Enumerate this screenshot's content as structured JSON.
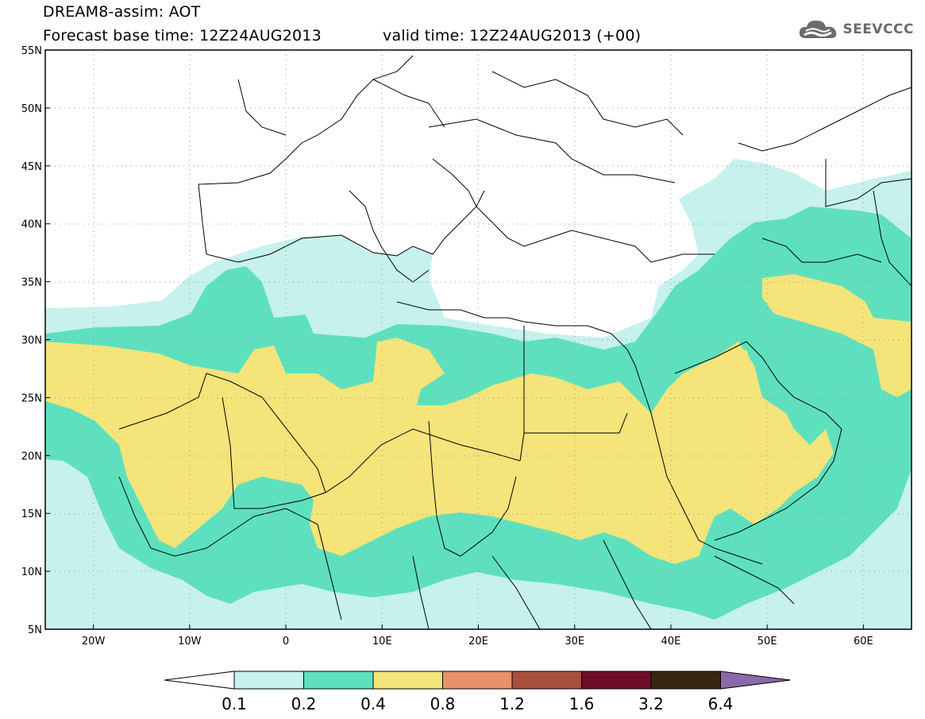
{
  "title": {
    "line1": "DREAM8-assim: AOT",
    "base_time": "Forecast base time: 12Z24AUG2013",
    "valid_time": "valid time: 12Z24AUG2013 (+00)"
  },
  "logo": {
    "text": "SEEVCCC",
    "icon": "cloud-icon"
  },
  "map": {
    "lon_ticks": [
      "20W",
      "10W",
      "0",
      "10E",
      "20E",
      "30E",
      "40E",
      "50E",
      "60E"
    ],
    "lat_ticks": [
      "55N",
      "50N",
      "45N",
      "40N",
      "35N",
      "30N",
      "25N",
      "20N",
      "15N",
      "10N",
      "5N"
    ],
    "lon_range": [
      -25,
      65
    ],
    "lat_range": [
      5,
      55
    ]
  },
  "legend": {
    "labels": [
      "0.1",
      "0.2",
      "0.4",
      "0.8",
      "1.2",
      "1.6",
      "3.2",
      "6.4"
    ],
    "colors": [
      "#c6f1ec",
      "#5ee0be",
      "#f4e47a",
      "#e8916a",
      "#a8503e",
      "#6e0d2a",
      "#3a2614",
      "#8a6aa8"
    ]
  }
}
